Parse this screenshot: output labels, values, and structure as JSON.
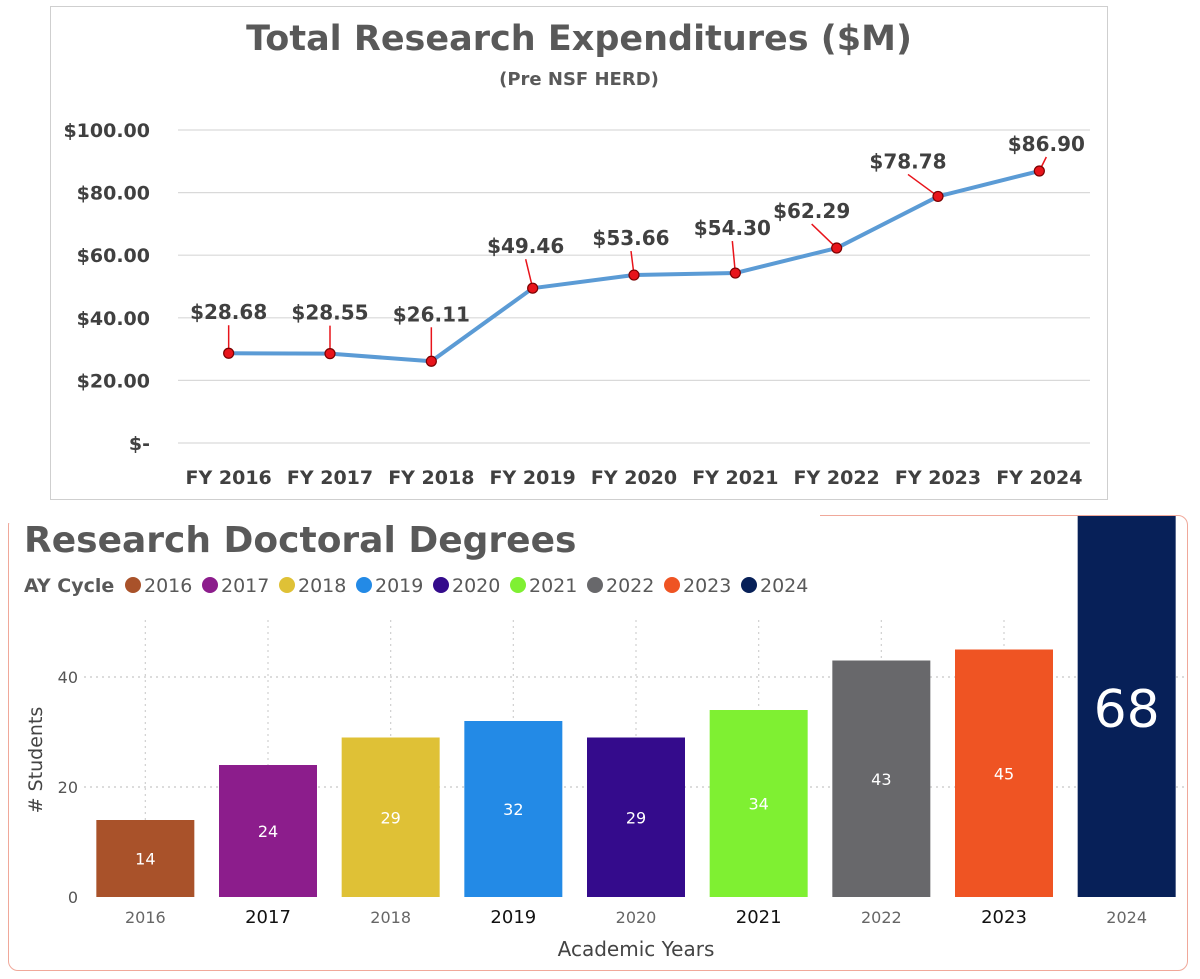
{
  "colors": {
    "line": "#5b9bd5",
    "marker": "#e8141b",
    "leader": "#e8141b",
    "grid": "#d9d9d9",
    "title_text": "#595959",
    "panel_border": "#f0a89a"
  },
  "chart_data": [
    {
      "type": "line",
      "title": "Total Research Expenditures ($M)",
      "subtitle": "(Pre NSF HERD)",
      "xlabel": "",
      "ylabel": "",
      "categories": [
        "FY 2016",
        "FY 2017",
        "FY 2018",
        "FY 2019",
        "FY 2020",
        "FY 2021",
        "FY 2022",
        "FY 2023",
        "FY 2024"
      ],
      "values": [
        28.68,
        28.55,
        26.11,
        49.46,
        53.66,
        54.3,
        62.29,
        78.78,
        86.9
      ],
      "data_labels": [
        "$28.68",
        "$28.55",
        "$26.11",
        "$49.46",
        "$53.66",
        "$54.30",
        "$62.29",
        "$78.78",
        "$86.90"
      ],
      "ylim": [
        0,
        100
      ],
      "yticks": [
        0,
        20,
        40,
        60,
        80,
        100
      ],
      "ytick_labels": [
        "$-",
        "$20.00",
        "$40.00",
        "$60.00",
        "$80.00",
        "$100.00"
      ],
      "grid": true
    },
    {
      "type": "bar",
      "title": "Research Doctoral Degrees",
      "legend_title": "AY Cycle",
      "legend_labels": [
        "2016",
        "2017",
        "2018",
        "2019",
        "2020",
        "2021",
        "2022",
        "2023",
        "2024"
      ],
      "categories": [
        "2016",
        "2017",
        "2018",
        "2019",
        "2020",
        "2021",
        "2022",
        "2023",
        "2024"
      ],
      "values": [
        14,
        24,
        29,
        32,
        29,
        34,
        43,
        45,
        68
      ],
      "data_labels": [
        "14",
        "24",
        "29",
        "32",
        "29",
        "34",
        "43",
        "45",
        "68"
      ],
      "colors": [
        "#a9522a",
        "#8c1d8c",
        "#dfc136",
        "#238ae6",
        "#340b8c",
        "#7ff032",
        "#68686b",
        "#ef5423",
        "#072058"
      ],
      "xlabel": "Academic Years",
      "ylabel": "# Students",
      "ylim": [
        0,
        50
      ],
      "yticks": [
        0,
        20,
        40
      ],
      "ytick_labels": [
        "0",
        "20",
        "40"
      ],
      "grid": true
    }
  ]
}
